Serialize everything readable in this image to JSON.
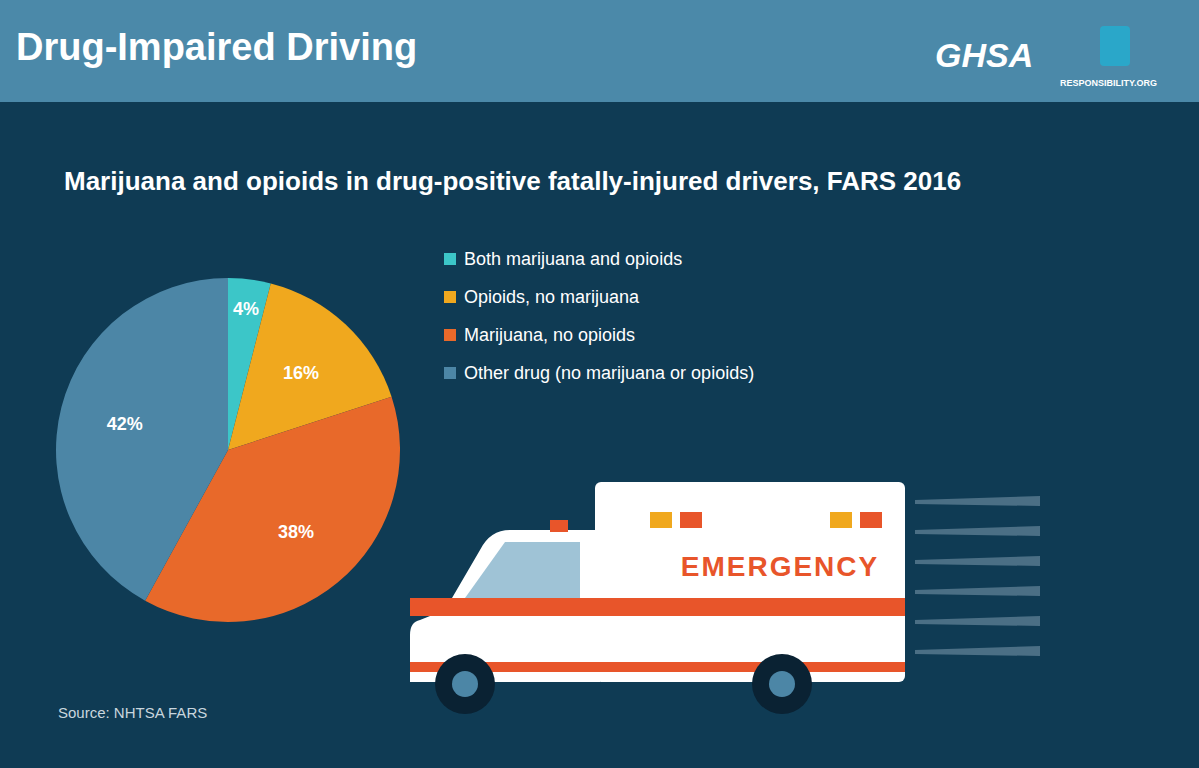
{
  "chart_data": {
    "type": "pie",
    "title": "Drug-Impaired Driving",
    "subtitle": "Marijuana and opioids in drug-positive fatally-injured drivers, FARS 2016",
    "categories": [
      "Both marijuana and opioids",
      "Opioids, no marijuana",
      "Marijuana, no opioids",
      "Other drug (no marijuana or opioids)"
    ],
    "values": [
      4,
      16,
      38,
      42
    ],
    "value_labels": [
      "4%",
      "16%",
      "38%",
      "42%"
    ],
    "colors": [
      "#3cc6c8",
      "#f0a81e",
      "#e8692a",
      "#4c86a6"
    ],
    "data_labels": true,
    "legend": "right",
    "source": "Source: NHTSA FARS",
    "logos": [
      "GHSA",
      "RESPONSIBILITY.ORG"
    ],
    "annotations": [
      "EMERGENCY"
    ]
  }
}
